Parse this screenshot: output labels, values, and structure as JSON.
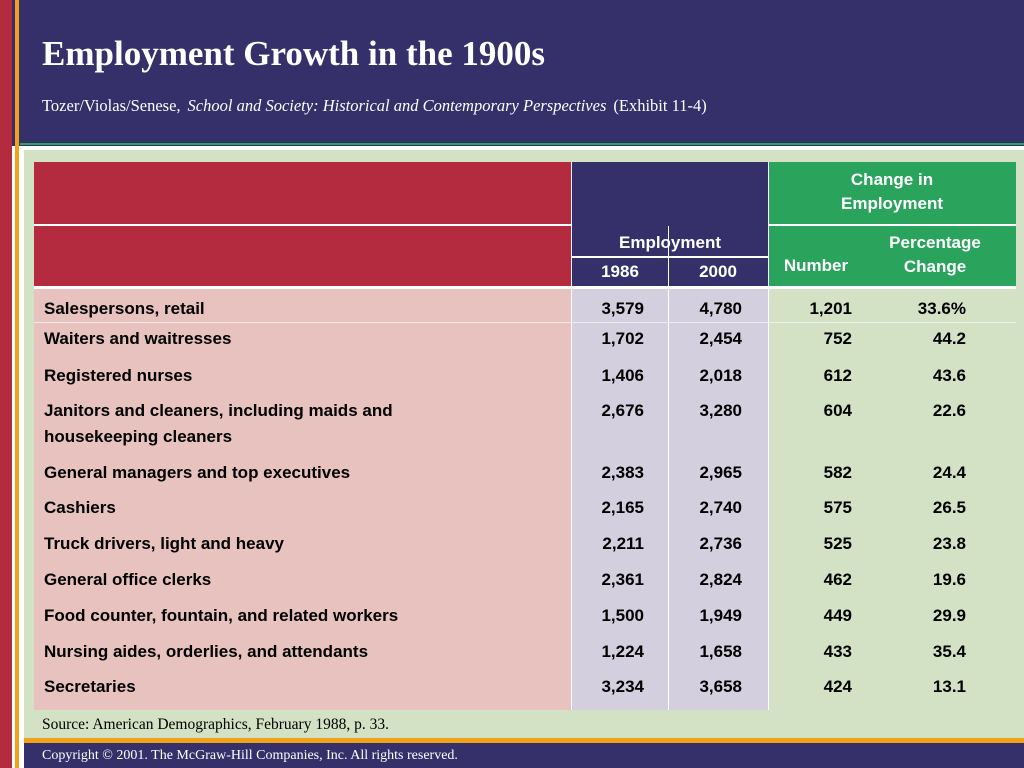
{
  "slide": {
    "title": "Employment Growth in the 1900s",
    "citation_authors": "Tozer/Violas/Senese,",
    "citation_book": "School and Society:  Historical and Contemporary Perspectives",
    "citation_exhibit": "(Exhibit 11-4)",
    "source": "Source: American Demographics, February 1988, p. 33.",
    "copyright": "Copyright © 2001. The McGraw-Hill Companies, Inc. All rights reserved."
  },
  "colors": {
    "navy": "#352f6a",
    "crimson": "#b42a3e",
    "green": "#2aa35d",
    "orange": "#f2a11b",
    "pink": "#e8c2bf",
    "lavender": "#d3cfdf",
    "pale_green": "#d3e2c5"
  },
  "table": {
    "header": {
      "change_line1": "Change in",
      "change_line2": "Employment",
      "employment": "Employment",
      "year1": "1986",
      "year2": "2000",
      "number": "Number",
      "pct_line1": "Percentage",
      "pct_line2": "Change"
    },
    "rows": [
      {
        "occupation": "Salespersons, retail",
        "y1986": "3,579",
        "y2000": "4,780",
        "number": "1,201",
        "pct": "33.6%"
      },
      {
        "occupation": "Waiters and waitresses",
        "y1986": "1,702",
        "y2000": "2,454",
        "number": "752",
        "pct": "44.2"
      },
      {
        "occupation": "Registered nurses",
        "y1986": "1,406",
        "y2000": "2,018",
        "number": "612",
        "pct": "43.6"
      },
      {
        "occupation": "Janitors and cleaners, including maids and housekeeping cleaners",
        "y1986": "2,676",
        "y2000": "3,280",
        "number": "604",
        "pct": "22.6"
      },
      {
        "occupation": "General managers and top executives",
        "y1986": "2,383",
        "y2000": "2,965",
        "number": "582",
        "pct": "24.4"
      },
      {
        "occupation": "Cashiers",
        "y1986": "2,165",
        "y2000": "2,740",
        "number": "575",
        "pct": "26.5"
      },
      {
        "occupation": "Truck drivers, light and heavy",
        "y1986": "2,211",
        "y2000": "2,736",
        "number": "525",
        "pct": "23.8"
      },
      {
        "occupation": "General office clerks",
        "y1986": "2,361",
        "y2000": "2,824",
        "number": "462",
        "pct": "19.6"
      },
      {
        "occupation": "Food counter, fountain, and related workers",
        "y1986": "1,500",
        "y2000": "1,949",
        "number": "449",
        "pct": "29.9"
      },
      {
        "occupation": "Nursing aides, orderlies, and attendants",
        "y1986": "1,224",
        "y2000": "1,658",
        "number": "433",
        "pct": "35.4"
      },
      {
        "occupation": "Secretaries",
        "y1986": "3,234",
        "y2000": "3,658",
        "number": "424",
        "pct": "13.1"
      }
    ]
  }
}
